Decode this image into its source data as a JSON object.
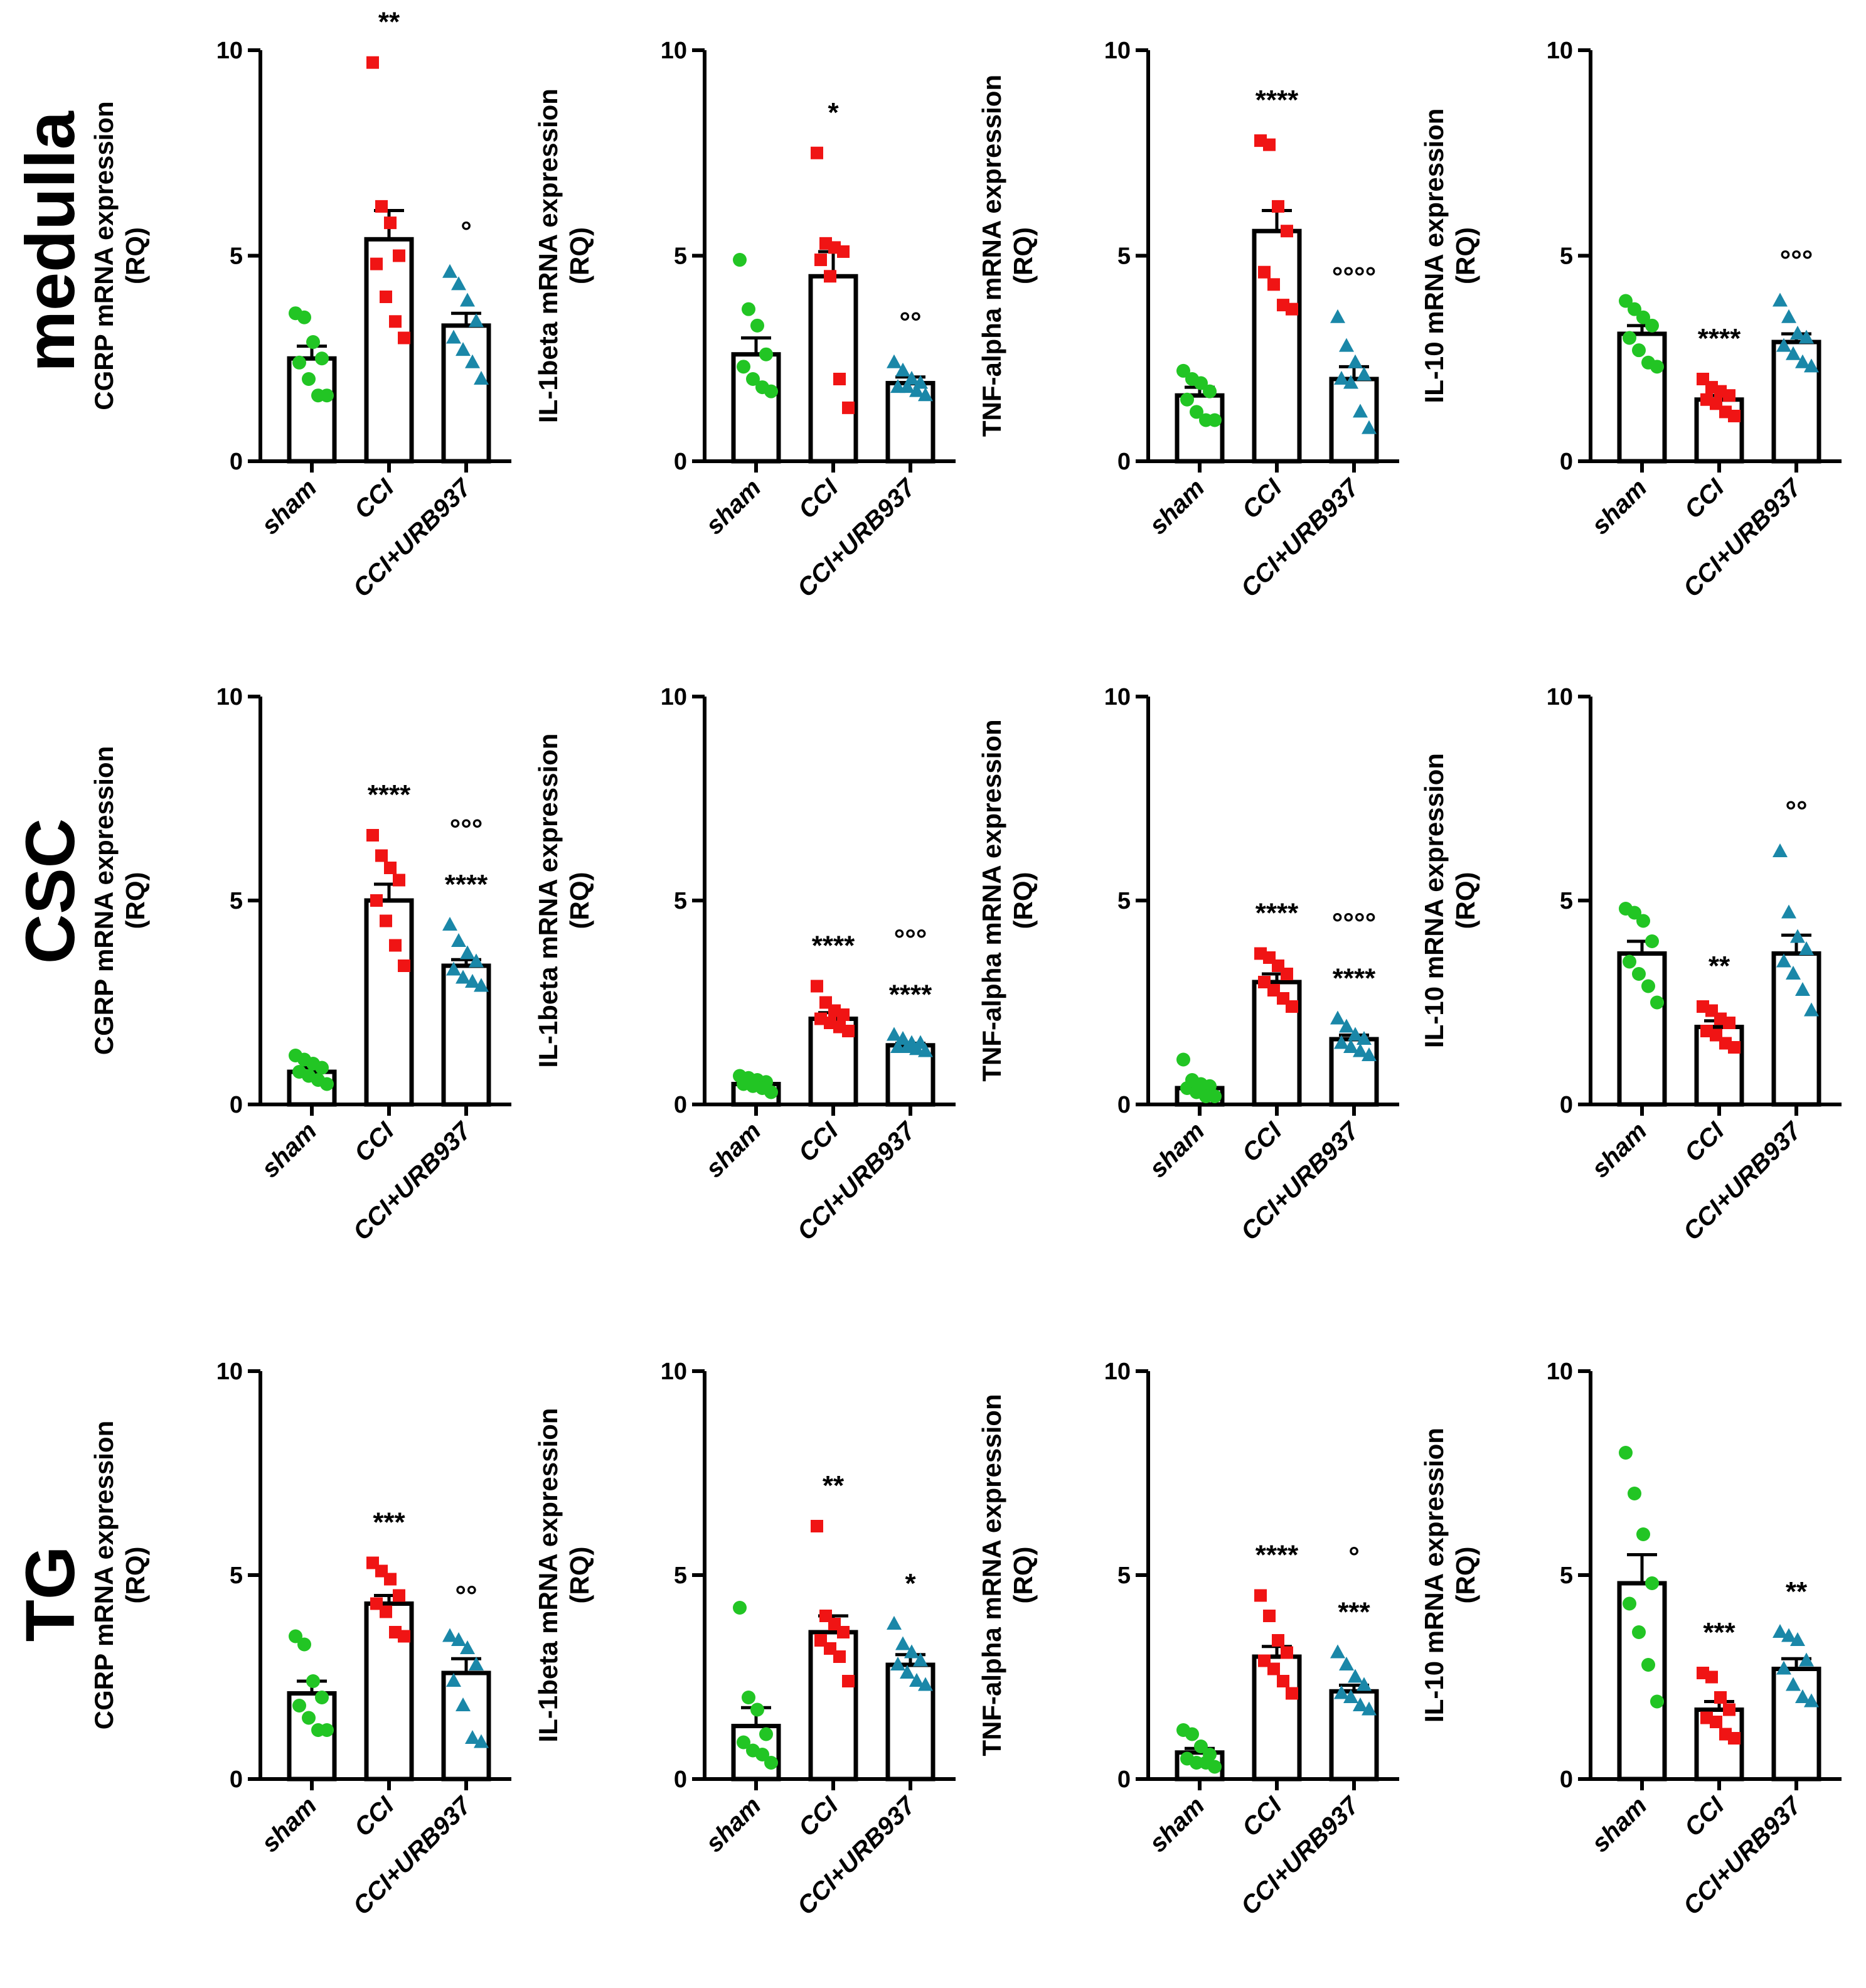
{
  "row_labels": [
    "medulla",
    "CSC",
    "TG"
  ],
  "colors": {
    "sham": "#22c524",
    "cci": "#f01414",
    "cci_urb": "#1a87a8",
    "axis": "#000000"
  },
  "chart_data": [
    {
      "type": "bar",
      "row": "medulla",
      "title": "",
      "ylabel": "CGRP mRNA expression (RQ)",
      "ylabel_lines": [
        "CGRP mRNA expression",
        "(RQ)"
      ],
      "categories": [
        "sham",
        "CCI",
        "CCI+URB937"
      ],
      "ylim": [
        0,
        10
      ],
      "yticks": [
        "0",
        "5",
        "10"
      ],
      "values": [
        2.5,
        5.4,
        3.3
      ],
      "sem": [
        0.3,
        0.7,
        0.3
      ],
      "points": [
        [
          3.6,
          3.5,
          2.9,
          2.5,
          2.4,
          2.0,
          1.6,
          1.6
        ],
        [
          9.7,
          6.2,
          5.8,
          5.0,
          4.8,
          4.0,
          3.4,
          3.0
        ],
        [
          4.6,
          4.3,
          3.9,
          3.4,
          3.0,
          2.7,
          2.4,
          2.0
        ]
      ],
      "annotations": [
        {
          "series": 1,
          "text": "**"
        },
        {
          "series": 2,
          "text": "°"
        }
      ]
    },
    {
      "type": "bar",
      "row": "medulla",
      "title": "",
      "ylabel": "IL-1beta mRNA expression (RQ)",
      "ylabel_lines": [
        "IL-1beta mRNA expression",
        "(RQ)"
      ],
      "categories": [
        "sham",
        "CCI",
        "CCI+URB937"
      ],
      "ylim": [
        0,
        10
      ],
      "yticks": [
        "0",
        "5",
        "10"
      ],
      "values": [
        2.6,
        4.5,
        1.9
      ],
      "sem": [
        0.4,
        0.6,
        0.15
      ],
      "points": [
        [
          4.9,
          3.7,
          3.3,
          2.6,
          2.3,
          2.0,
          1.8,
          1.7
        ],
        [
          7.5,
          5.3,
          5.2,
          5.1,
          4.9,
          4.5,
          2.0,
          1.3
        ],
        [
          2.4,
          2.2,
          2.0,
          1.9,
          1.8,
          1.8,
          1.7,
          1.6
        ]
      ],
      "annotations": [
        {
          "series": 1,
          "text": "*"
        },
        {
          "series": 2,
          "text": "°°"
        }
      ]
    },
    {
      "type": "bar",
      "row": "medulla",
      "title": "",
      "ylabel": "TNF-alpha mRNA expression (RQ)",
      "ylabel_lines": [
        "TNF-alpha mRNA expression",
        "(RQ)"
      ],
      "categories": [
        "sham",
        "CCI",
        "CCI+URB937"
      ],
      "ylim": [
        0,
        10
      ],
      "yticks": [
        "0",
        "5",
        "10"
      ],
      "values": [
        1.6,
        5.6,
        2.0
      ],
      "sem": [
        0.2,
        0.5,
        0.3
      ],
      "points": [
        [
          2.2,
          2.0,
          1.9,
          1.7,
          1.5,
          1.2,
          1.0,
          1.0
        ],
        [
          7.8,
          7.7,
          6.2,
          5.6,
          4.6,
          4.3,
          3.8,
          3.7
        ],
        [
          3.5,
          2.8,
          2.4,
          2.1,
          2.0,
          1.9,
          1.2,
          0.8
        ]
      ],
      "annotations": [
        {
          "series": 1,
          "text": "****"
        },
        {
          "series": 2,
          "text": "°°°°"
        }
      ]
    },
    {
      "type": "bar",
      "row": "medulla",
      "title": "",
      "ylabel": "IL-10 mRNA expression (RQ)",
      "ylabel_lines": [
        "IL-10 mRNA expression",
        "(RQ)"
      ],
      "categories": [
        "sham",
        "CCI",
        "CCI+URB937"
      ],
      "ylim": [
        0,
        10
      ],
      "yticks": [
        "0",
        "5",
        "10"
      ],
      "values": [
        3.1,
        1.5,
        2.9
      ],
      "sem": [
        0.2,
        0.1,
        0.2
      ],
      "points": [
        [
          3.9,
          3.7,
          3.5,
          3.3,
          3.0,
          2.7,
          2.4,
          2.3
        ],
        [
          2.0,
          1.8,
          1.7,
          1.6,
          1.5,
          1.4,
          1.2,
          1.1
        ],
        [
          3.9,
          3.5,
          3.1,
          3.0,
          2.8,
          2.6,
          2.4,
          2.3
        ]
      ],
      "annotations": [
        {
          "series": 1,
          "text": "****"
        },
        {
          "series": 2,
          "text": "°°°"
        }
      ]
    },
    {
      "type": "bar",
      "row": "CSC",
      "title": "",
      "ylabel": "CGRP mRNA expression (RQ)",
      "ylabel_lines": [
        "CGRP mRNA expression",
        "(RQ)"
      ],
      "categories": [
        "sham",
        "CCI",
        "CCI+URB937"
      ],
      "ylim": [
        0,
        10
      ],
      "yticks": [
        "0",
        "5",
        "10"
      ],
      "values": [
        0.8,
        5.0,
        3.4
      ],
      "sem": [
        0.1,
        0.4,
        0.15
      ],
      "points": [
        [
          1.2,
          1.1,
          1.0,
          0.9,
          0.8,
          0.7,
          0.6,
          0.5
        ],
        [
          6.6,
          6.1,
          5.8,
          5.5,
          5.0,
          4.5,
          3.9,
          3.4
        ],
        [
          4.4,
          4.0,
          3.7,
          3.5,
          3.3,
          3.1,
          3.0,
          2.9
        ]
      ],
      "annotations": [
        {
          "series": 1,
          "text": "****"
        },
        {
          "series": 2,
          "text": "°°°",
          "level": 2
        },
        {
          "series": 2,
          "text": "****"
        }
      ]
    },
    {
      "type": "bar",
      "row": "CSC",
      "title": "",
      "ylabel": "IL-1beta mRNA expression (RQ)",
      "ylabel_lines": [
        "IL-1beta mRNA expression",
        "(RQ)"
      ],
      "categories": [
        "sham",
        "CCI",
        "CCI+URB937"
      ],
      "ylim": [
        0,
        10
      ],
      "yticks": [
        "0",
        "5",
        "10"
      ],
      "values": [
        0.5,
        2.1,
        1.45
      ],
      "sem": [
        0.05,
        0.15,
        0.05
      ],
      "points": [
        [
          0.7,
          0.65,
          0.6,
          0.55,
          0.5,
          0.45,
          0.4,
          0.3
        ],
        [
          2.9,
          2.5,
          2.3,
          2.2,
          2.1,
          2.0,
          1.9,
          1.8
        ],
        [
          1.7,
          1.6,
          1.5,
          1.5,
          1.4,
          1.4,
          1.35,
          1.3
        ]
      ],
      "annotations": [
        {
          "series": 1,
          "text": "****"
        },
        {
          "series": 2,
          "text": "°°°",
          "level": 2
        },
        {
          "series": 2,
          "text": "****"
        }
      ]
    },
    {
      "type": "bar",
      "row": "CSC",
      "title": "",
      "ylabel": "TNF-alpha mRNA expression (RQ)",
      "ylabel_lines": [
        "TNF-alpha mRNA expression",
        "(RQ)"
      ],
      "categories": [
        "sham",
        "CCI",
        "CCI+URB937"
      ],
      "ylim": [
        0,
        10
      ],
      "yticks": [
        "0",
        "5",
        "10"
      ],
      "values": [
        0.4,
        3.0,
        1.6
      ],
      "sem": [
        0.1,
        0.2,
        0.1
      ],
      "points": [
        [
          1.1,
          0.6,
          0.5,
          0.45,
          0.4,
          0.3,
          0.2,
          0.2
        ],
        [
          3.7,
          3.6,
          3.4,
          3.2,
          3.0,
          2.8,
          2.6,
          2.4
        ],
        [
          2.1,
          1.9,
          1.7,
          1.6,
          1.5,
          1.4,
          1.3,
          1.2
        ]
      ],
      "annotations": [
        {
          "series": 1,
          "text": "****"
        },
        {
          "series": 2,
          "text": "°°°°",
          "level": 2
        },
        {
          "series": 2,
          "text": "****"
        }
      ]
    },
    {
      "type": "bar",
      "row": "CSC",
      "title": "",
      "ylabel": "IL-10 mRNA expression (RQ)",
      "ylabel_lines": [
        "IL-10 mRNA expression",
        "(RQ)"
      ],
      "categories": [
        "sham",
        "CCI",
        "CCI+URB937"
      ],
      "ylim": [
        0,
        10
      ],
      "yticks": [
        "0",
        "5",
        "10"
      ],
      "values": [
        3.7,
        1.9,
        3.7
      ],
      "sem": [
        0.3,
        0.15,
        0.45
      ],
      "points": [
        [
          4.8,
          4.7,
          4.5,
          4.0,
          3.5,
          3.2,
          2.9,
          2.5
        ],
        [
          2.4,
          2.3,
          2.1,
          2.0,
          1.8,
          1.7,
          1.5,
          1.4
        ],
        [
          6.2,
          4.7,
          4.1,
          3.8,
          3.5,
          3.2,
          2.8,
          2.3
        ]
      ],
      "annotations": [
        {
          "series": 1,
          "text": "**"
        },
        {
          "series": 2,
          "text": "°°"
        }
      ]
    },
    {
      "type": "bar",
      "row": "TG",
      "title": "",
      "ylabel": "CGRP mRNA expression (RQ)",
      "ylabel_lines": [
        "CGRP mRNA expression",
        "(RQ)"
      ],
      "categories": [
        "sham",
        "CCI",
        "CCI+URB937"
      ],
      "ylim": [
        0,
        10
      ],
      "yticks": [
        "0",
        "5",
        "10"
      ],
      "values": [
        2.1,
        4.3,
        2.6
      ],
      "sem": [
        0.3,
        0.2,
        0.35
      ],
      "points": [
        [
          3.5,
          3.3,
          2.4,
          2.0,
          1.8,
          1.5,
          1.2,
          1.2
        ],
        [
          5.3,
          5.1,
          4.9,
          4.5,
          4.3,
          4.1,
          3.6,
          3.5
        ],
        [
          3.5,
          3.4,
          3.2,
          2.8,
          2.4,
          1.8,
          1.0,
          0.9
        ]
      ],
      "annotations": [
        {
          "series": 1,
          "text": "***"
        },
        {
          "series": 2,
          "text": "°°"
        }
      ]
    },
    {
      "type": "bar",
      "row": "TG",
      "title": "",
      "ylabel": "IL-1beta mRNA expression (RQ)",
      "ylabel_lines": [
        "IL-1beta mRNA expression",
        "(RQ)"
      ],
      "categories": [
        "sham",
        "CCI",
        "CCI+URB937"
      ],
      "ylim": [
        0,
        10
      ],
      "yticks": [
        "0",
        "5",
        "10"
      ],
      "values": [
        1.3,
        3.6,
        2.8
      ],
      "sem": [
        0.45,
        0.4,
        0.25
      ],
      "points": [
        [
          4.2,
          2.0,
          1.7,
          1.1,
          0.9,
          0.7,
          0.6,
          0.4
        ],
        [
          6.2,
          4.0,
          3.8,
          3.6,
          3.4,
          3.2,
          3.0,
          2.4
        ],
        [
          3.8,
          3.3,
          3.1,
          2.9,
          2.8,
          2.6,
          2.4,
          2.3
        ]
      ],
      "annotations": [
        {
          "series": 1,
          "text": "**"
        },
        {
          "series": 2,
          "text": "*"
        }
      ]
    },
    {
      "type": "bar",
      "row": "TG",
      "title": "",
      "ylabel": "TNF-alpha mRNA expression (RQ)",
      "ylabel_lines": [
        "TNF-alpha mRNA expression",
        "(RQ)"
      ],
      "categories": [
        "sham",
        "CCI",
        "CCI+URB937"
      ],
      "ylim": [
        0,
        10
      ],
      "yticks": [
        "0",
        "5",
        "10"
      ],
      "values": [
        0.65,
        3.0,
        2.15
      ],
      "sem": [
        0.1,
        0.25,
        0.15
      ],
      "points": [
        [
          1.2,
          1.1,
          0.8,
          0.6,
          0.5,
          0.4,
          0.4,
          0.3
        ],
        [
          4.5,
          4.0,
          3.4,
          3.1,
          2.9,
          2.7,
          2.4,
          2.1
        ],
        [
          3.1,
          2.8,
          2.5,
          2.3,
          2.1,
          2.0,
          1.8,
          1.7
        ]
      ],
      "annotations": [
        {
          "series": 1,
          "text": "****"
        },
        {
          "series": 2,
          "text": "°",
          "level": 2
        },
        {
          "series": 2,
          "text": "***"
        }
      ]
    },
    {
      "type": "bar",
      "row": "TG",
      "title": "",
      "ylabel": "IL-10 mRNA expression (RQ)",
      "ylabel_lines": [
        "IL-10 mRNA expression",
        "(RQ)"
      ],
      "categories": [
        "sham",
        "CCI",
        "CCI+URB937"
      ],
      "ylim": [
        0,
        10
      ],
      "yticks": [
        "0",
        "5",
        "10"
      ],
      "values": [
        4.8,
        1.7,
        2.7
      ],
      "sem": [
        0.7,
        0.2,
        0.25
      ],
      "points": [
        [
          8.0,
          7.0,
          6.0,
          4.8,
          4.3,
          3.6,
          2.8,
          1.9
        ],
        [
          2.6,
          2.5,
          2.0,
          1.7,
          1.5,
          1.4,
          1.1,
          1.0
        ],
        [
          3.6,
          3.5,
          3.4,
          2.9,
          2.7,
          2.3,
          2.0,
          1.9
        ]
      ],
      "annotations": [
        {
          "series": 1,
          "text": "***"
        },
        {
          "series": 2,
          "text": "**"
        }
      ]
    }
  ]
}
